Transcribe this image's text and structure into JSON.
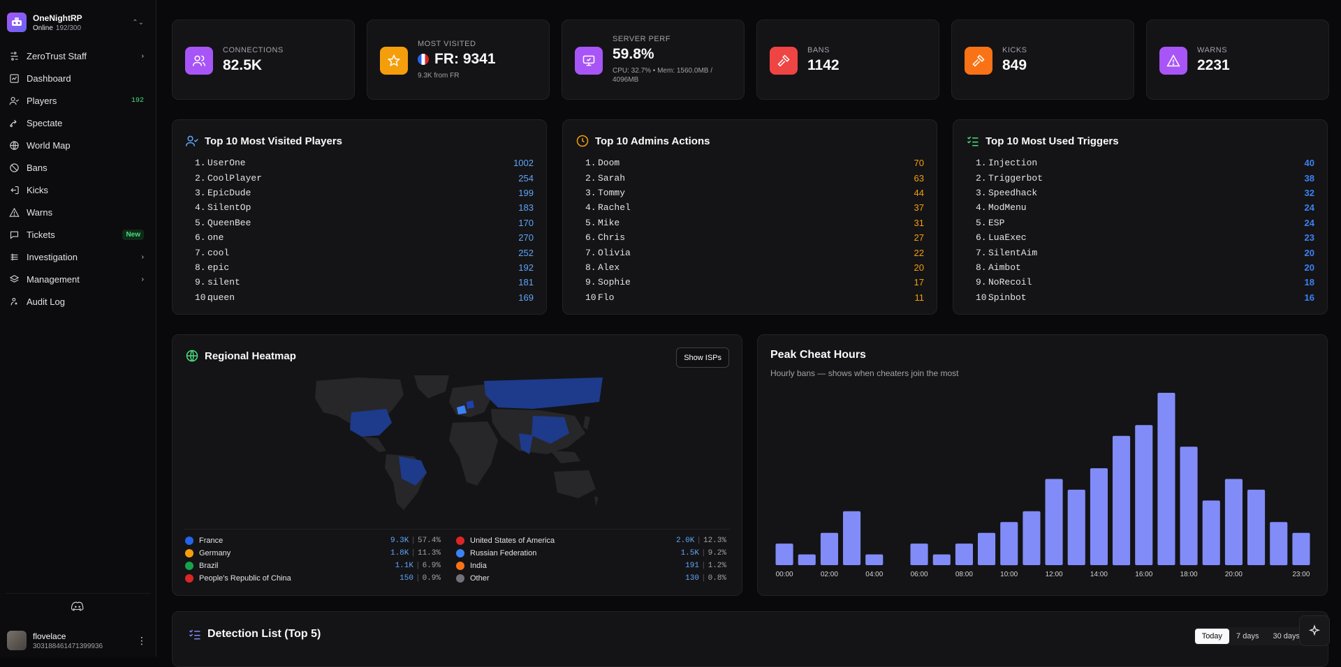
{
  "brand": {
    "name": "OneNightRP",
    "status": "Online",
    "count": "192/300"
  },
  "nav": [
    {
      "label": "ZeroTrust Staff",
      "icon": "zerotrust-icon",
      "right": "chevron"
    },
    {
      "label": "Dashboard",
      "icon": "dashboard-icon"
    },
    {
      "label": "Players",
      "icon": "players-icon",
      "badge": "192"
    },
    {
      "label": "Spectate",
      "icon": "spectate-icon"
    },
    {
      "label": "World Map",
      "icon": "globe-icon"
    },
    {
      "label": "Bans",
      "icon": "ban-icon"
    },
    {
      "label": "Kicks",
      "icon": "kick-icon"
    },
    {
      "label": "Warns",
      "icon": "warning-icon"
    },
    {
      "label": "Tickets",
      "icon": "ticket-icon",
      "tag": "New"
    },
    {
      "label": "Investigation",
      "icon": "investigation-icon",
      "right": "chevron"
    },
    {
      "label": "Management",
      "icon": "layers-icon",
      "right": "chevron"
    },
    {
      "label": "Audit Log",
      "icon": "audit-icon"
    }
  ],
  "user": {
    "name": "flovelace",
    "id": "303188461471399936"
  },
  "stats": [
    {
      "label": "Connections",
      "value": "82.5K",
      "color": "#a855f7",
      "icon": "users-icon"
    },
    {
      "label": "Most Visited",
      "value": "FR: 9341",
      "sub": "9.3K from FR",
      "color": "#f59e0b",
      "icon": "star-icon"
    },
    {
      "label": "Server Perf",
      "value": "59.8%",
      "sub": "CPU: 32.7% • Mem: 1560.0MB / 4096MB",
      "color": "#a855f7",
      "icon": "monitor-icon"
    },
    {
      "label": "Bans",
      "value": "1142",
      "color": "#ef4444",
      "icon": "gavel-icon"
    },
    {
      "label": "Kicks",
      "value": "849",
      "color": "#f97316",
      "icon": "gavel-icon"
    },
    {
      "label": "Warns",
      "value": "2231",
      "color": "#a855f7",
      "icon": "warning-icon"
    }
  ],
  "top_players": {
    "title": "Top 10 Most Visited Players",
    "color": "#60a5fa",
    "items": [
      {
        "name": "UserOne",
        "value": "1002"
      },
      {
        "name": "CoolPlayer",
        "value": "254"
      },
      {
        "name": "EpicDude",
        "value": "199"
      },
      {
        "name": "SilentOp",
        "value": "183"
      },
      {
        "name": "QueenBee",
        "value": "170"
      },
      {
        "name": "one",
        "value": "270"
      },
      {
        "name": "cool",
        "value": "252"
      },
      {
        "name": "epic",
        "value": "192"
      },
      {
        "name": "silent",
        "value": "181"
      },
      {
        "name": "queen",
        "value": "169"
      }
    ]
  },
  "top_admins": {
    "title": "Top 10 Admins Actions",
    "color": "#f59e0b",
    "items": [
      {
        "name": "Doom",
        "value": "70"
      },
      {
        "name": "Sarah",
        "value": "63"
      },
      {
        "name": "Tommy",
        "value": "44"
      },
      {
        "name": "Rachel",
        "value": "37"
      },
      {
        "name": "Mike",
        "value": "31"
      },
      {
        "name": "Chris",
        "value": "27"
      },
      {
        "name": "Olivia",
        "value": "22"
      },
      {
        "name": "Alex",
        "value": "20"
      },
      {
        "name": "Sophie",
        "value": "17"
      },
      {
        "name": "Flo",
        "value": "11"
      }
    ]
  },
  "top_triggers": {
    "title": "Top 10 Most Used Triggers",
    "color": "#3b82f6",
    "items": [
      {
        "name": "Injection",
        "value": "40"
      },
      {
        "name": "Triggerbot",
        "value": "38"
      },
      {
        "name": "Speedhack",
        "value": "32"
      },
      {
        "name": "ModMenu",
        "value": "24"
      },
      {
        "name": "ESP",
        "value": "24"
      },
      {
        "name": "LuaExec",
        "value": "23"
      },
      {
        "name": "SilentAim",
        "value": "20"
      },
      {
        "name": "Aimbot",
        "value": "20"
      },
      {
        "name": "NoRecoil",
        "value": "18"
      },
      {
        "name": "Spinbot",
        "value": "16"
      }
    ]
  },
  "heatmap": {
    "title": "Regional Heatmap",
    "button": "Show ISPs",
    "regions": [
      {
        "name": "France",
        "value": "9.3K",
        "pct": "57.4%",
        "flag": "#2563eb"
      },
      {
        "name": "United States of America",
        "value": "2.0K",
        "pct": "12.3%",
        "flag": "#dc2626"
      },
      {
        "name": "Germany",
        "value": "1.8K",
        "pct": "11.3%",
        "flag": "#f59e0b"
      },
      {
        "name": "Russian Federation",
        "value": "1.5K",
        "pct": "9.2%",
        "flag": "#3b82f6"
      },
      {
        "name": "Brazil",
        "value": "1.1K",
        "pct": "6.9%",
        "flag": "#16a34a"
      },
      {
        "name": "India",
        "value": "191",
        "pct": "1.2%",
        "flag": "#f97316"
      },
      {
        "name": "People's Republic of China",
        "value": "150",
        "pct": "0.9%",
        "flag": "#dc2626"
      },
      {
        "name": "Other",
        "value": "130",
        "pct": "0.8%",
        "flag": "#71717a"
      }
    ]
  },
  "peak": {
    "title": "Peak Cheat Hours",
    "subtitle": "Hourly bans — shows when cheaters join the most"
  },
  "chart_data": {
    "type": "bar",
    "title": "Peak Cheat Hours",
    "subtitle": "Hourly bans — shows when cheaters join the most",
    "categories": [
      "00:00",
      "01:00",
      "02:00",
      "03:00",
      "04:00",
      "05:00",
      "06:00",
      "07:00",
      "08:00",
      "09:00",
      "10:00",
      "11:00",
      "12:00",
      "13:00",
      "14:00",
      "15:00",
      "16:00",
      "17:00",
      "18:00",
      "19:00",
      "20:00",
      "21:00",
      "22:00",
      "23:00"
    ],
    "tick_labels": [
      "00:00",
      "02:00",
      "04:00",
      "06:00",
      "08:00",
      "10:00",
      "12:00",
      "14:00",
      "16:00",
      "18:00",
      "20:00",
      "23:00"
    ],
    "values": [
      2,
      1,
      3,
      5,
      1,
      0,
      2,
      1,
      2,
      3,
      4,
      5,
      8,
      7,
      9,
      12,
      13,
      16,
      11,
      6,
      8,
      7,
      4,
      3
    ],
    "color": "#818cf8",
    "grid": false
  },
  "detection": {
    "title": "Detection List (Top 5)",
    "ranges": [
      "Today",
      "7 days",
      "30 days"
    ]
  }
}
